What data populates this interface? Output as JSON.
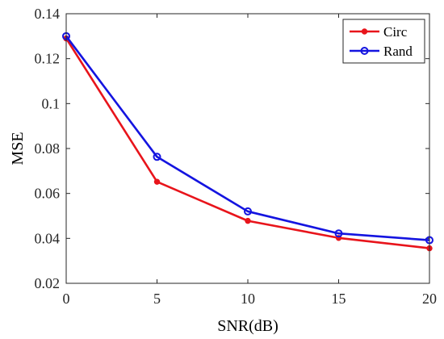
{
  "chart_data": {
    "type": "line",
    "xlabel": "SNR(dB)",
    "ylabel": "MSE",
    "xlim": [
      0,
      20
    ],
    "ylim": [
      0.02,
      0.14
    ],
    "xticks": [
      "0",
      "5",
      "10",
      "15",
      "20"
    ],
    "yticks": [
      "0.02",
      "0.04",
      "0.06",
      "0.08",
      "0.1",
      "0.12",
      "0.14"
    ],
    "grid": false,
    "legend_position": "top-right",
    "x": [
      0,
      5,
      10,
      15,
      20
    ],
    "series": [
      {
        "name": "Circ",
        "color": "#e8141b",
        "marker": "filled-circle",
        "values": [
          0.129,
          0.0652,
          0.0478,
          0.0402,
          0.0356
        ]
      },
      {
        "name": "Rand",
        "color": "#1414e0",
        "marker": "open-circle",
        "values": [
          0.13,
          0.0763,
          0.052,
          0.0422,
          0.0392
        ]
      }
    ]
  }
}
